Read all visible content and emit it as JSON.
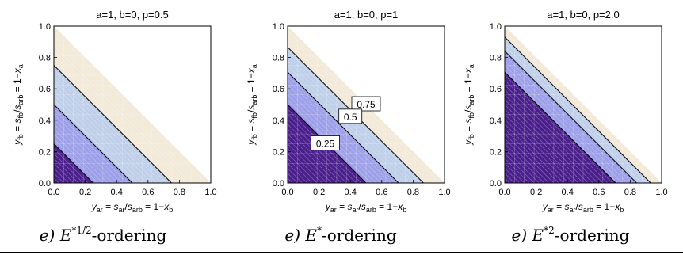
{
  "colors": {
    "band_top": "#f2e9d8",
    "band_3": "#bfcfe9",
    "band_2": "#9d9fe9",
    "band_1": "#4a1f8c",
    "grid_light": "rgba(255,255,255,0.35)",
    "contour": "#000000"
  },
  "axis": {
    "xlabel": "y_ar = s_ar/s_arb = 1−x_b",
    "ylabel": "y_fb = s_fb/s_arb = 1−x_a",
    "x_ticks": [
      "0.0",
      "0.2",
      "0.4",
      "0.6",
      "0.8",
      "1.0"
    ],
    "y_ticks": [
      "0.0",
      "0.2",
      "0.4",
      "0.6",
      "0.8",
      "1.0"
    ]
  },
  "chart_data": [
    {
      "type": "contour",
      "title": "a=1, b=0, p=0.5",
      "p": 0.5,
      "xlim": [
        0,
        1
      ],
      "ylim": [
        0,
        1
      ],
      "contour_levels": [
        0.25,
        0.5,
        0.75
      ],
      "contour_intercepts": [
        0.25,
        0.5,
        0.75
      ],
      "region_boundary_intercept": 1.0,
      "contour_labels": [],
      "caption": {
        "prefix": "e) E",
        "sup": "*",
        "frac_num": "1",
        "frac_den": "2",
        "suffix": "-ordering"
      }
    },
    {
      "type": "contour",
      "title": "a=1, b=0, p=1",
      "p": 1,
      "xlim": [
        0,
        1
      ],
      "ylim": [
        0,
        1
      ],
      "contour_levels": [
        0.25,
        0.5,
        0.75
      ],
      "contour_intercepts": [
        0.5,
        0.7071,
        0.866
      ],
      "region_boundary_intercept": 1.0,
      "contour_labels": [
        {
          "text": "0.75",
          "x": 0.5,
          "y": 0.5
        },
        {
          "text": "0.5",
          "x": 0.4,
          "y": 0.42
        },
        {
          "text": "0.25",
          "x": 0.24,
          "y": 0.25
        }
      ],
      "caption": {
        "prefix": "e) E",
        "sup": "*",
        "suffix": "-ordering"
      }
    },
    {
      "type": "contour",
      "title": "a=1, b=0, p=2.0",
      "p": 2.0,
      "xlim": [
        0,
        1
      ],
      "ylim": [
        0,
        1
      ],
      "contour_levels": [
        0.25,
        0.5,
        0.75
      ],
      "contour_intercepts": [
        0.7071,
        0.8409,
        0.9306
      ],
      "region_boundary_intercept": 1.0,
      "contour_labels": [],
      "caption": {
        "prefix": "e) E",
        "sup": "*2",
        "suffix": "-ordering"
      }
    }
  ]
}
